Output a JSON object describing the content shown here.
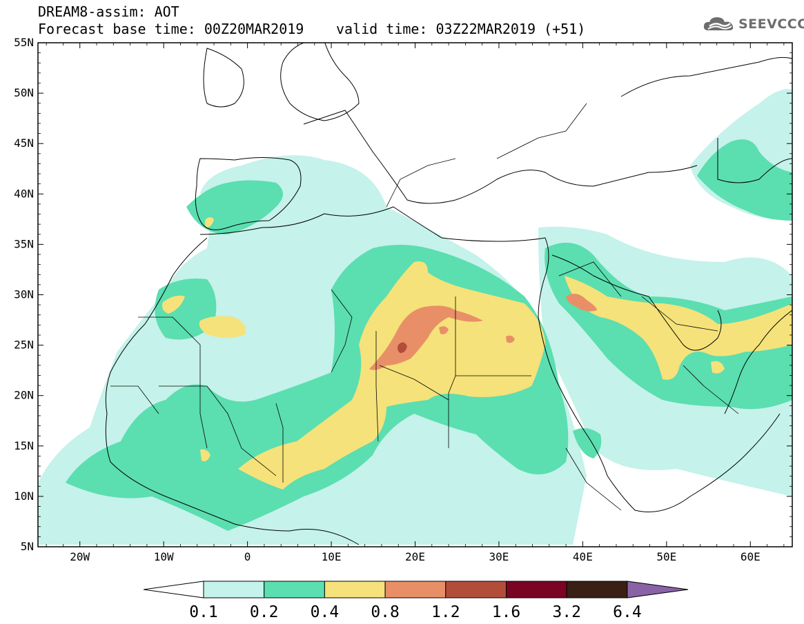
{
  "header": {
    "model_line": "DREAM8-assim: AOT",
    "base_time_line": "Forecast base time: 00Z20MAR2019",
    "valid_time_line": "valid time: 03Z22MAR2019 (+51)",
    "logo_text": "SEEVCCC"
  },
  "map": {
    "lon_range": [
      -25,
      65
    ],
    "lat_range": [
      5,
      55
    ],
    "lat_ticks": [
      "55N",
      "50N",
      "45N",
      "40N",
      "35N",
      "30N",
      "25N",
      "20N",
      "15N",
      "10N",
      "5N"
    ],
    "lon_ticks": [
      "20W",
      "10W",
      "0",
      "10E",
      "20E",
      "30E",
      "40E",
      "50E",
      "60E"
    ]
  },
  "colorbar": {
    "labels": [
      "0.1",
      "0.2",
      "0.4",
      "0.8",
      "1.2",
      "1.6",
      "3.2",
      "6.4"
    ],
    "colors": [
      "#ffffff",
      "#c5f2ea",
      "#5bdeb0",
      "#f5e27a",
      "#e88f68",
      "#b24d3a",
      "#7a0424",
      "#3a1f14",
      "#8a62a6"
    ]
  },
  "colors": {
    "c01": "#c5f2ea",
    "c02": "#5bdeb0",
    "c04": "#f5e27a",
    "c08": "#e88f68",
    "c12": "#b24d3a"
  }
}
